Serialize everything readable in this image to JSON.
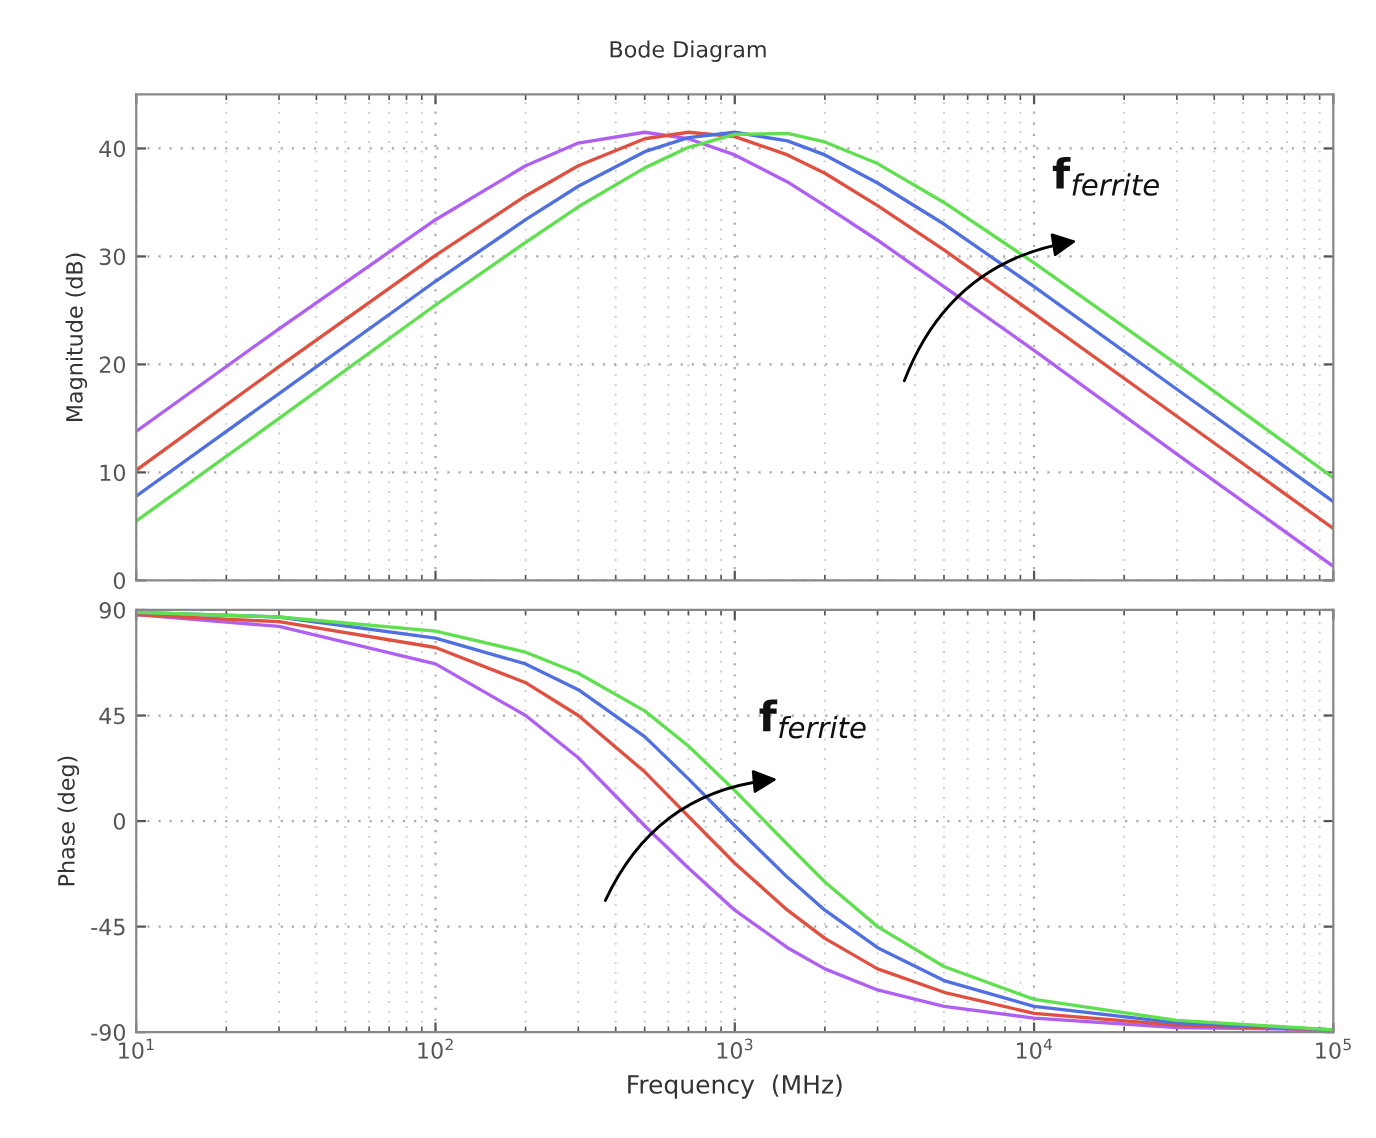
{
  "chart_data": [
    {
      "type": "line",
      "title": "Bode Diagram",
      "ylabel": "Magnitude (dB)",
      "annotations": [
        "f$_{ferrite}$"
      ],
      "x": [
        10,
        30,
        100,
        200,
        300,
        500,
        700,
        1000,
        1500,
        2000,
        3000,
        5000,
        10000,
        30000,
        100000
      ],
      "series": [
        {
          "color": "#b060f0",
          "values": [
            13.8,
            23.3,
            33.4,
            38.4,
            40.5,
            41.5,
            40.9,
            39.4,
            36.9,
            34.7,
            31.5,
            27.2,
            21.3,
            11.7,
            1.3
          ]
        },
        {
          "color": "#e05040",
          "values": [
            10.2,
            19.8,
            30.1,
            35.6,
            38.4,
            40.9,
            41.5,
            41.1,
            39.4,
            37.7,
            34.7,
            30.6,
            24.7,
            15.2,
            4.8
          ]
        },
        {
          "color": "#5070e0",
          "values": [
            7.8,
            17.3,
            27.7,
            33.4,
            36.5,
            39.7,
            41.0,
            41.5,
            40.7,
            39.4,
            36.8,
            33.0,
            27.2,
            17.7,
            7.3
          ]
        },
        {
          "color": "#60e050",
          "values": [
            5.5,
            15.0,
            25.5,
            31.3,
            34.6,
            38.2,
            40.1,
            41.3,
            41.4,
            40.6,
            38.6,
            35.0,
            29.4,
            20.0,
            9.5
          ]
        }
      ],
      "xlim": [
        10,
        100000
      ],
      "ylim": [
        0,
        45
      ],
      "yticks": [
        0,
        10,
        20,
        30,
        40
      ],
      "log": "x",
      "grid": true,
      "tick_labels": "y"
    },
    {
      "type": "line",
      "xlabel": "Frequency  (MHz)",
      "ylabel": "Phase (deg)",
      "annotations": [
        "f$_{ferrite}$"
      ],
      "x": [
        10,
        30,
        100,
        200,
        300,
        500,
        700,
        1000,
        1500,
        2000,
        3000,
        5000,
        10000,
        30000,
        100000
      ],
      "series": [
        {
          "color": "#b060f0",
          "values": [
            88,
            83,
            67,
            45,
            27,
            -2,
            -20,
            -38,
            -54,
            -63,
            -72,
            -79,
            -84,
            -88,
            -89
          ]
        },
        {
          "color": "#e05040",
          "values": [
            88,
            85,
            74,
            59,
            45,
            21,
            2,
            -18,
            -38,
            -50,
            -63,
            -73,
            -82,
            -87,
            -89
          ]
        },
        {
          "color": "#5070e0",
          "values": [
            89,
            87,
            78,
            67,
            56,
            36,
            18,
            -2,
            -24,
            -38,
            -54,
            -68,
            -79,
            -86,
            -89
          ]
        },
        {
          "color": "#60e050",
          "values": [
            89,
            87,
            81,
            72,
            63,
            47,
            32,
            13,
            -10,
            -26,
            -45,
            -62,
            -76,
            -85,
            -89
          ]
        }
      ],
      "xlim": [
        10,
        100000
      ],
      "ylim": [
        -90,
        90
      ],
      "yticks": [
        -90,
        -45,
        0,
        45,
        90
      ],
      "xticks": [
        {
          "value": 10,
          "label": "10$^{1}$"
        },
        {
          "value": 100,
          "label": "10$^{2}$"
        },
        {
          "value": 1000,
          "label": "10$^{3}$"
        },
        {
          "value": 10000,
          "label": "10$^{4}$"
        },
        {
          "value": 100000,
          "label": "10$^{5}$"
        }
      ],
      "log": "x",
      "grid": true
    }
  ]
}
